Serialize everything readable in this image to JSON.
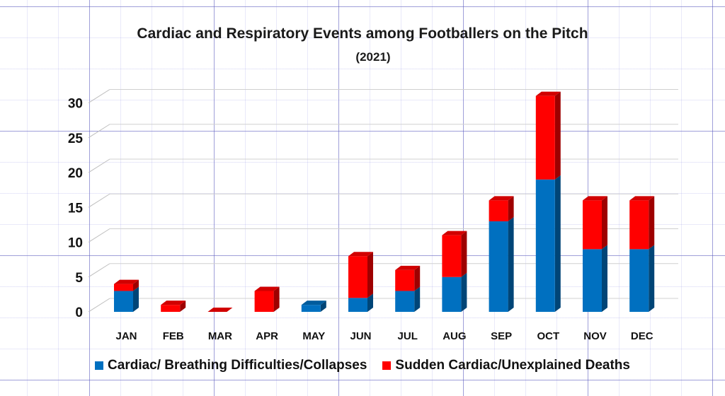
{
  "chart_data": {
    "type": "bar",
    "stacked": true,
    "title": "Cardiac and Respiratory Events among Footballers on the Pitch",
    "subtitle": "(2021)",
    "xlabel": "",
    "ylabel": "",
    "ylim": [
      0,
      30
    ],
    "yticks": [
      "0",
      "5",
      "10",
      "15",
      "20",
      "25",
      "30"
    ],
    "categories": [
      "JAN",
      "FEB",
      "MAR",
      "APR",
      "MAY",
      "JUN",
      "JUL",
      "AUG",
      "SEP",
      "OCT",
      "NOV",
      "DEC"
    ],
    "series": [
      {
        "name": "Cardiac/ Breathing Difficulties/Collapses",
        "color": "#0070c0",
        "values": [
          3,
          0,
          0,
          0,
          1,
          2,
          3,
          5,
          13,
          19,
          9,
          9
        ]
      },
      {
        "name": "Sudden Cardiac/Unexplained Deaths",
        "color": "#ff0000",
        "values": [
          1,
          1,
          0,
          3,
          0,
          6,
          3,
          6,
          3,
          12,
          7,
          7
        ]
      }
    ],
    "grid": true,
    "legend_position": "bottom"
  }
}
